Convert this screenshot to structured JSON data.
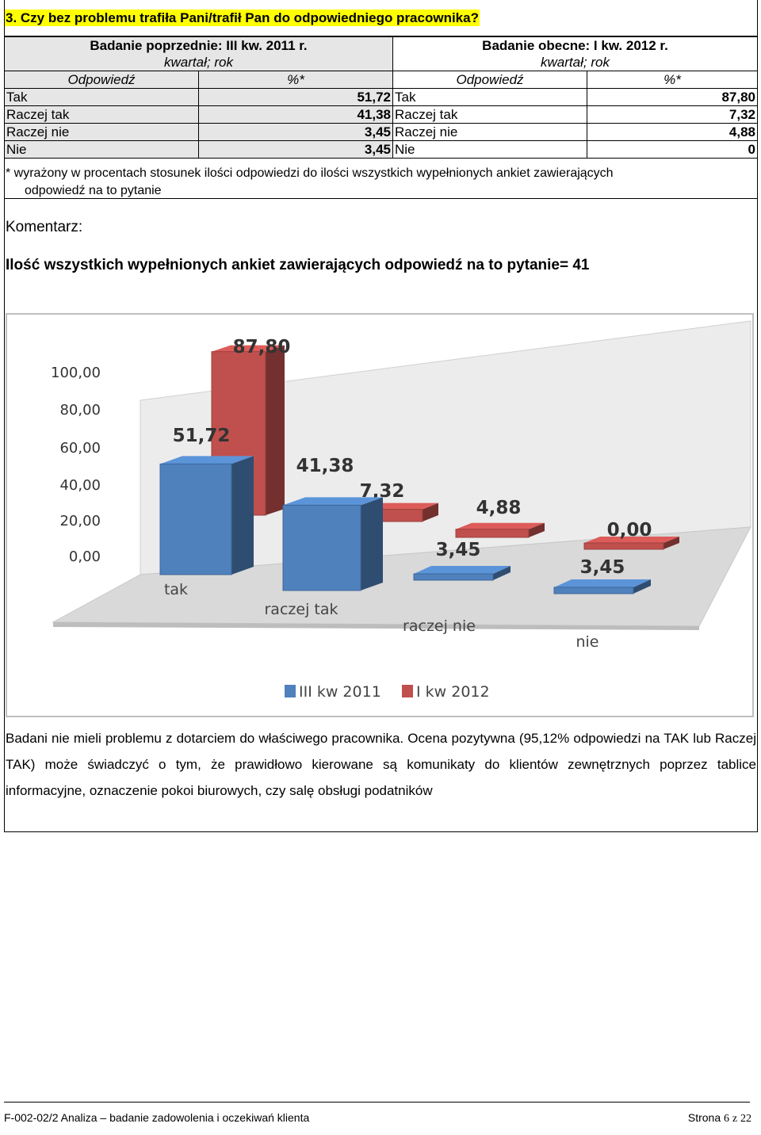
{
  "question": "3. Czy bez problemu trafiła Pani/trafił Pan do odpowiedniego pracownika?",
  "table": {
    "previous_period": "Badanie poprzednie: III kw. 2011 r.",
    "current_period": "Badanie obecne: I kw. 2012 r.",
    "period_sub": "kwartał; rok",
    "col_answer": "Odpowiedź",
    "col_percent": "%*",
    "rows": [
      {
        "label_prev": "Tak",
        "value_prev": "51,72",
        "label_curr": "Tak",
        "value_curr": "87,80"
      },
      {
        "label_prev": "Raczej tak",
        "value_prev": "41,38",
        "label_curr": "Raczej tak",
        "value_curr": "7,32"
      },
      {
        "label_prev": "Raczej nie",
        "value_prev": "3,45",
        "label_curr": "Raczej nie",
        "value_curr": "4,88"
      },
      {
        "label_prev": "Nie",
        "value_prev": "3,45",
        "label_curr": "Nie",
        "value_curr": "0"
      }
    ]
  },
  "footnote_line1": "* wyrażony w procentach stosunek ilości odpowiedzi do ilości wszystkich wypełnionych ankiet zawierających",
  "footnote_line2": "odpowiedź na to pytanie",
  "comment_label": "Komentarz:",
  "total_text": "Ilość wszystkich wypełnionych ankiet zawierających odpowiedź na to pytanie= 41",
  "chart_data": {
    "type": "bar",
    "categories": [
      "tak",
      "raczej tak",
      "raczej nie",
      "nie"
    ],
    "series": [
      {
        "name": "III kw 2011",
        "values": [
          51.72,
          41.38,
          3.45,
          3.45
        ],
        "labels": [
          "51,72",
          "41,38",
          "3,45",
          "3,45"
        ],
        "color": "#4f81bd"
      },
      {
        "name": "I kw 2012",
        "values": [
          87.8,
          7.32,
          4.88,
          0.0
        ],
        "labels": [
          "87,80",
          "7,32",
          "4,88",
          "0,00"
        ],
        "color": "#c0504d"
      }
    ],
    "y_ticks": [
      "0,00",
      "20,00",
      "40,00",
      "60,00",
      "80,00",
      "100,00"
    ],
    "ylim": [
      0,
      100
    ],
    "legend": "bottom"
  },
  "summary": "Badani nie mieli  problemu z dotarciem do właściwego pracownika. Ocena pozytywna (95,12% odpowiedzi na TAK lub Raczej TAK) może świadczyć o tym, że prawidłowo kierowane są komunikaty do klientów zewnętrznych poprzez tablice informacyjne, oznaczenie pokoi  biurowych,  czy salę obsługi podatników",
  "footer": {
    "left": "F-002-02/2 Analiza – badanie zadowolenia i oczekiwań klienta",
    "page_word": "Strona",
    "page_num": "6",
    "of_word": "z",
    "page_total": "22"
  }
}
